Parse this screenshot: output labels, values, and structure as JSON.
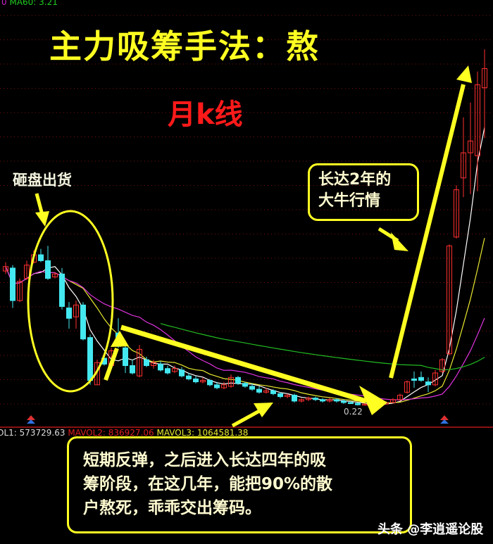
{
  "title": "主力吸筹手法：熬",
  "subtitle": "月k线",
  "annotations": {
    "dump_label": "砸盘出货",
    "bull_box": [
      "长达2年的",
      "大牛行情"
    ],
    "note_box": [
      "短期反弹，之后进入长达四年的吸",
      "筹阶段，在这几年，能把90%的散",
      "户熬死，乖乖交出筹码。"
    ],
    "low_marker": "0.22"
  },
  "indicators": {
    "ma_prefix": "0",
    "ma60": "MA60: 3.21",
    "mavol1": "OL1: 573729.63",
    "mavol2": "MAVOL2: 836927.06",
    "mavol3": "MAVOL3: 1064581.38"
  },
  "watermark": "头条 @李逍遥论股",
  "colors": {
    "up": "#ff3030",
    "down": "#44e8f0",
    "ma5": "#ffffff",
    "ma10": "#e8e830",
    "ma20": "#dd33dd",
    "ma60": "#22bb22",
    "annotation": "#ffff22",
    "grid": "#7a1010"
  },
  "chart_data": {
    "type": "candlestick",
    "period": "monthly",
    "ylim": [
      -0.5,
      26.5
    ],
    "grid": true,
    "low_label": 0.22,
    "ma_periods": [
      5,
      10,
      20,
      60
    ],
    "ohlc": [
      [
        9.4,
        9.7,
        10.0,
        9.2
      ],
      [
        9.6,
        7.4,
        9.8,
        6.9
      ],
      [
        7.4,
        8.7,
        8.9,
        7.3
      ],
      [
        8.9,
        9.8,
        10.1,
        8.8
      ],
      [
        10.0,
        10.5,
        10.8,
        9.9
      ],
      [
        10.5,
        10.1,
        10.9,
        10.0
      ],
      [
        10.1,
        8.9,
        11.1,
        8.8
      ],
      [
        9.0,
        9.2,
        9.3,
        8.9
      ],
      [
        9.2,
        7.0,
        9.6,
        6.8
      ],
      [
        6.9,
        6.2,
        7.3,
        5.5
      ],
      [
        6.3,
        7.1,
        7.4,
        5.5
      ],
      [
        7.1,
        4.8,
        7.3,
        4.7
      ],
      [
        4.9,
        2.0,
        5.1,
        1.7
      ],
      [
        1.7,
        3.2,
        3.4,
        1.7
      ],
      [
        3.5,
        3.1,
        3.7,
        3.0
      ],
      [
        3.0,
        4.0,
        4.2,
        2.9
      ],
      [
        5.2,
        4.3,
        6.2,
        4.2
      ],
      [
        4.2,
        3.0,
        4.4,
        2.5
      ],
      [
        3.0,
        2.5,
        3.4,
        2.4
      ],
      [
        2.3,
        4.1,
        4.4,
        2.2
      ],
      [
        3.4,
        3.0,
        3.6,
        2.9
      ],
      [
        3.0,
        3.2,
        3.4,
        2.8
      ],
      [
        3.1,
        2.7,
        3.3,
        2.6
      ],
      [
        2.8,
        2.5,
        3.0,
        2.4
      ],
      [
        2.6,
        2.8,
        3.0,
        2.5
      ],
      [
        2.7,
        2.3,
        2.9,
        2.2
      ],
      [
        2.3,
        2.1,
        2.5,
        2.0
      ],
      [
        2.1,
        1.9,
        2.3,
        1.8
      ],
      [
        1.9,
        2.0,
        2.2,
        1.8
      ],
      [
        2.0,
        1.7,
        2.1,
        1.6
      ],
      [
        1.7,
        1.5,
        1.9,
        1.4
      ],
      [
        1.5,
        1.7,
        1.9,
        1.4
      ],
      [
        1.6,
        2.2,
        2.4,
        1.5
      ],
      [
        2.2,
        1.8,
        2.3,
        1.7
      ],
      [
        1.8,
        1.6,
        1.9,
        1.5
      ],
      [
        1.6,
        1.4,
        1.8,
        1.3
      ],
      [
        1.4,
        1.2,
        1.6,
        1.1
      ],
      [
        1.2,
        1.3,
        1.5,
        1.1
      ],
      [
        1.3,
        1.1,
        1.4,
        1.0
      ],
      [
        1.1,
        0.9,
        1.2,
        0.8
      ],
      [
        0.9,
        1.0,
        1.1,
        0.8
      ],
      [
        1.0,
        0.6,
        1.1,
        0.5
      ],
      [
        0.6,
        0.7,
        0.8,
        0.5
      ],
      [
        0.7,
        0.8,
        0.9,
        0.6
      ],
      [
        0.8,
        0.7,
        0.9,
        0.6
      ],
      [
        0.7,
        0.6,
        0.8,
        0.5
      ],
      [
        0.6,
        0.7,
        0.8,
        0.5
      ],
      [
        0.7,
        0.6,
        0.8,
        0.5
      ],
      [
        0.6,
        0.5,
        0.7,
        0.4
      ],
      [
        0.5,
        0.45,
        0.6,
        0.4
      ],
      [
        0.45,
        0.35,
        0.5,
        0.3
      ],
      [
        0.35,
        0.4,
        0.5,
        0.3
      ],
      [
        0.4,
        0.3,
        0.5,
        0.22
      ],
      [
        0.3,
        0.4,
        0.5,
        0.25
      ],
      [
        0.4,
        0.5,
        0.6,
        0.35
      ],
      [
        0.5,
        0.7,
        0.8,
        0.45
      ],
      [
        0.7,
        1.0,
        1.1,
        0.6
      ],
      [
        1.2,
        1.9,
        2.0,
        1.1
      ],
      [
        2.1,
        2.0,
        2.6,
        1.5
      ],
      [
        2.2,
        2.0,
        2.6,
        1.9
      ],
      [
        1.9,
        1.7,
        2.2,
        1.2
      ],
      [
        1.7,
        2.5,
        2.7,
        1.6
      ],
      [
        2.6,
        3.4,
        3.5,
        2.5
      ],
      [
        3.8,
        11.1,
        11.2,
        3.7
      ],
      [
        11.7,
        14.9,
        15.2,
        11.6
      ],
      [
        15.7,
        17.4,
        19.8,
        14.4
      ],
      [
        17.4,
        18.2,
        20.8,
        14.6
      ],
      [
        17.2,
        22.0,
        22.9,
        14.8
      ],
      [
        21.8,
        23.1,
        24.4,
        18.4
      ]
    ]
  }
}
